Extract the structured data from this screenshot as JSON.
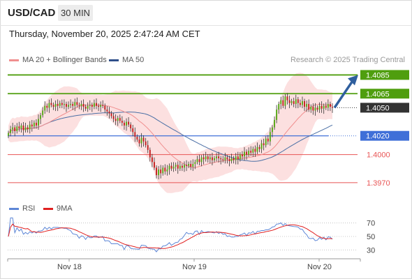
{
  "header": {
    "symbol": "USD/CAD",
    "timeframe": "30 MIN",
    "timestamp": "Thursday, November 20, 2025 2:47:24 AM CET"
  },
  "legend": {
    "ma20": "MA 20 + Bollinger Bands",
    "ma50": "MA 50",
    "copyright": "Research © 2025 Trading Central"
  },
  "colors": {
    "green": "#4f9e0e",
    "blue": "#3f6fd8",
    "red": "#e85555",
    "dark": "#333333",
    "band": "#fbd6d6",
    "ma20": "#f08f8f",
    "ma50": "#4a6fa5",
    "arrow": "#2f5f9e",
    "rsi": "#5d86d6",
    "ma9": "#e02020"
  },
  "chart_data": [
    {
      "type": "candlestick",
      "ylim": [
        1.3955,
        1.4095
      ],
      "x_labels": [
        "Nov 18",
        "Nov 19",
        "Nov 20"
      ],
      "levels": [
        {
          "value": 1.4085,
          "label": "1.4085",
          "role": "resistance"
        },
        {
          "value": 1.4065,
          "label": "1.4065",
          "role": "resistance"
        },
        {
          "value": 1.405,
          "label": "1.4050",
          "role": "last"
        },
        {
          "value": 1.402,
          "label": "1.4020",
          "role": "pivot"
        },
        {
          "value": 1.4,
          "label": "1.4000",
          "role": "support"
        },
        {
          "value": 1.397,
          "label": "1.3970",
          "role": "support"
        }
      ],
      "close_series": [
        1.4023,
        1.4027,
        1.4029,
        1.4025,
        1.403,
        1.4028,
        1.4031,
        1.4026,
        1.4029,
        1.4027,
        1.4032,
        1.403,
        1.4034,
        1.4031,
        1.4038,
        1.4042,
        1.4047,
        1.4052,
        1.405,
        1.4055,
        1.4053,
        1.4051,
        1.4054,
        1.4052,
        1.4055,
        1.4053,
        1.4054,
        1.4051,
        1.4053,
        1.4054,
        1.4052,
        1.4056,
        1.4053,
        1.4052,
        1.4054,
        1.4051,
        1.4049,
        1.4052,
        1.4053,
        1.4051,
        1.4055,
        1.4052,
        1.4051,
        1.4053,
        1.4052,
        1.4048,
        1.4046,
        1.4044,
        1.4041,
        1.4038,
        1.4036,
        1.4039,
        1.4036,
        1.4034,
        1.4031,
        1.4035,
        1.4032,
        1.4028,
        1.4024,
        1.4019,
        1.4016,
        1.4012,
        1.4018,
        1.4014,
        1.401,
        1.4005,
        1.3997,
        1.3992,
        1.3986,
        1.3978,
        1.3984,
        1.398,
        1.3986,
        1.3982,
        1.3984,
        1.3988,
        1.3985,
        1.3987,
        1.3989,
        1.3985,
        1.3988,
        1.3986,
        1.3989,
        1.3988,
        1.399,
        1.3987,
        1.399,
        1.3992,
        1.3995,
        1.3992,
        1.3997,
        1.3995,
        1.3998,
        1.3995,
        1.3997,
        1.3994,
        1.3996,
        1.3998,
        1.3996,
        1.3995,
        1.3994,
        1.3997,
        1.3995,
        1.3993,
        1.3996,
        1.3994,
        1.3998,
        1.3995,
        1.4,
        1.3998,
        1.4003,
        1.4,
        1.4004,
        1.4002,
        1.4006,
        1.4003,
        1.4008,
        1.4006,
        1.4012,
        1.401,
        1.4017,
        1.4014,
        1.4024,
        1.4029,
        1.4037,
        1.4048,
        1.4054,
        1.4058,
        1.4052,
        1.4062,
        1.4058,
        1.4055,
        1.4057,
        1.4054,
        1.4059,
        1.4055,
        1.4053,
        1.4057,
        1.4051,
        1.4054,
        1.4048,
        1.4051,
        1.4047,
        1.405,
        1.4048,
        1.4052,
        1.4049,
        1.4052,
        1.405,
        1.4054,
        1.4051,
        1.405
      ],
      "rsi_ticks": [
        "70",
        "50",
        "30"
      ]
    }
  ],
  "indicator_legend": {
    "rsi": "RSI",
    "ma9": "9MA"
  }
}
